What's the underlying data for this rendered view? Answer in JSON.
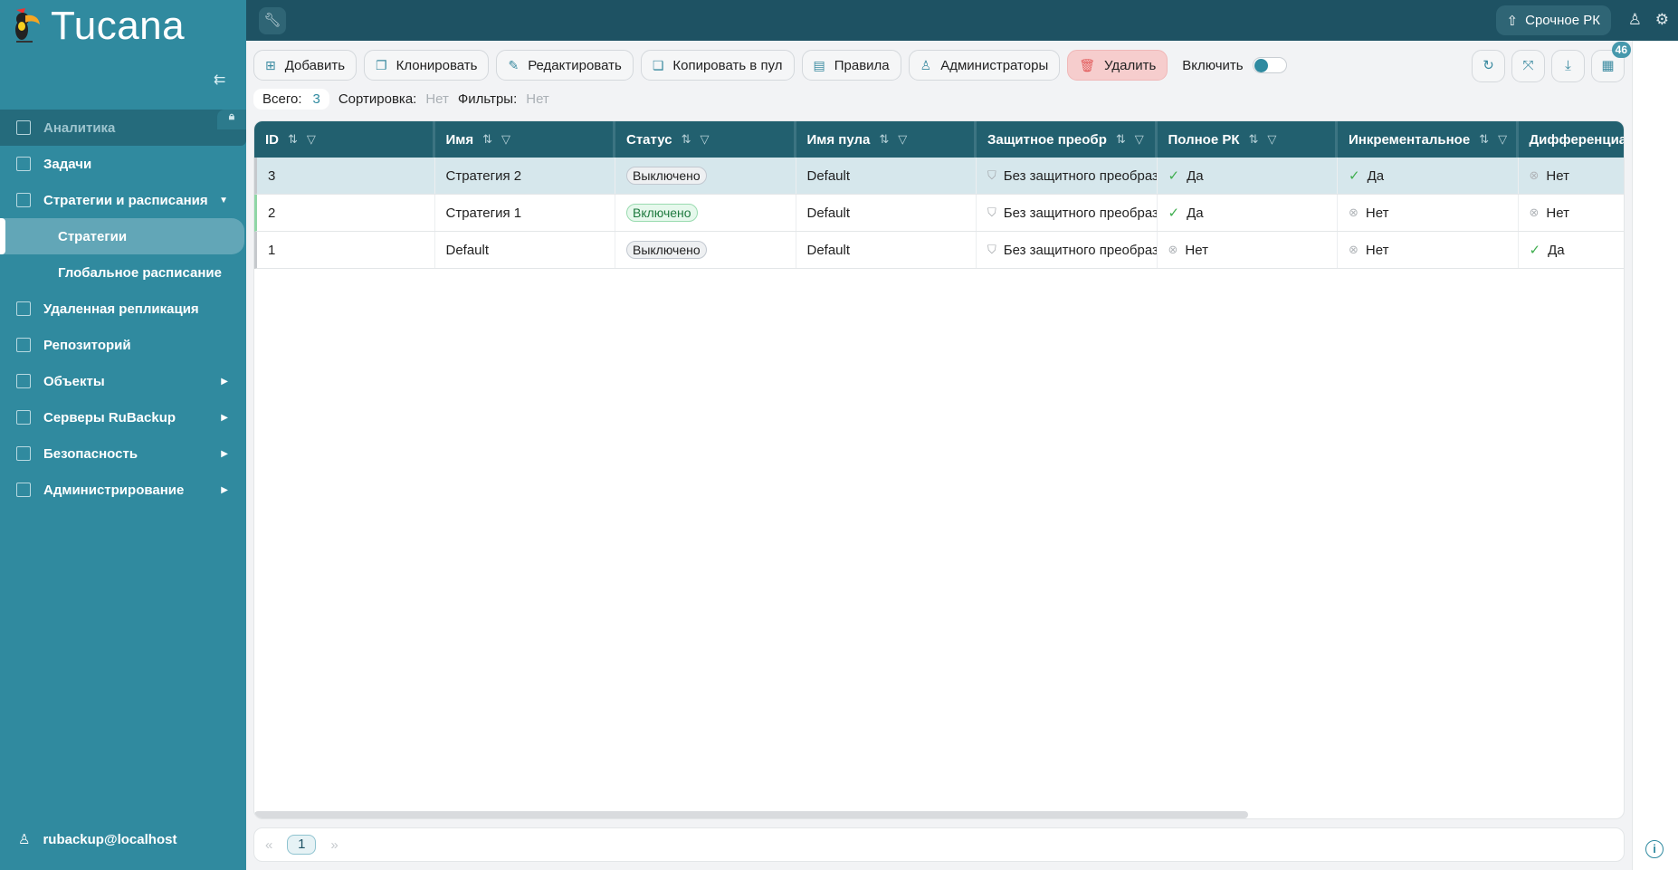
{
  "app": {
    "title": "Tucana"
  },
  "sidebar": {
    "items": [
      {
        "label": "Аналитика",
        "icon": "grid-icon",
        "locked": true
      },
      {
        "label": "Задачи",
        "icon": "tasks-icon"
      },
      {
        "label": "Стратегии и расписания",
        "icon": "document-icon",
        "expanded": true
      },
      {
        "label": "Стратегии",
        "sub": true,
        "active": true
      },
      {
        "label": "Глобальное расписание",
        "sub": true
      },
      {
        "label": "Удаленная репликация",
        "icon": "replication-icon"
      },
      {
        "label": "Репозиторий",
        "icon": "database-icon"
      },
      {
        "label": "Объекты",
        "icon": "monitor-icon",
        "has_children": true
      },
      {
        "label": "Серверы RuBackup",
        "icon": "server-icon",
        "has_children": true
      },
      {
        "label": "Безопасность",
        "icon": "lock-icon",
        "has_children": true
      },
      {
        "label": "Администрирование",
        "icon": "admin-icon",
        "has_children": true
      }
    ],
    "user": "rubackup@localhost"
  },
  "topbar": {
    "urgent_label": "Срочное РК"
  },
  "toolbar": {
    "add": "Добавить",
    "clone": "Клонировать",
    "edit": "Редактировать",
    "copy_to_pool": "Копировать в пул",
    "rules": "Правила",
    "admins": "Администраторы",
    "delete": "Удалить",
    "enable": "Включить",
    "enable_on": false,
    "columns_badge": "46"
  },
  "summary": {
    "total_label": "Всего:",
    "total": "3",
    "sort_label": "Сортировка:",
    "sort": "Нет",
    "filter_label": "Фильтры:",
    "filter": "Нет"
  },
  "table": {
    "columns": [
      "ID",
      "Имя",
      "Статус",
      "Имя пула",
      "Защитное преобр",
      "Полное РК",
      "Инкрементальное",
      "Дифференциал"
    ],
    "rows": [
      {
        "id": "3",
        "name": "Стратегия 2",
        "status": "Выключено",
        "enabled": false,
        "pool": "Default",
        "protect": "Без защитного преобраз",
        "full": "Да",
        "full_ok": true,
        "incr": "Да",
        "incr_ok": true,
        "diff": "Нет",
        "diff_ok": false,
        "selected": true
      },
      {
        "id": "2",
        "name": "Стратегия 1",
        "status": "Включено",
        "enabled": true,
        "pool": "Default",
        "protect": "Без защитного преобраз",
        "full": "Да",
        "full_ok": true,
        "incr": "Нет",
        "incr_ok": false,
        "diff": "Нет",
        "diff_ok": false
      },
      {
        "id": "1",
        "name": "Default",
        "status": "Выключено",
        "enabled": false,
        "pool": "Default",
        "protect": "Без защитного преобраз",
        "full": "Нет",
        "full_ok": false,
        "incr": "Нет",
        "incr_ok": false,
        "diff": "Да",
        "diff_ok": true
      }
    ]
  },
  "pager": {
    "current": "1"
  },
  "colors": {
    "sidebar": "#308a9f",
    "topbar": "#1e5263",
    "table_header": "#22606f",
    "accent": "#2f8aa0",
    "danger": "#f6cdcd"
  }
}
